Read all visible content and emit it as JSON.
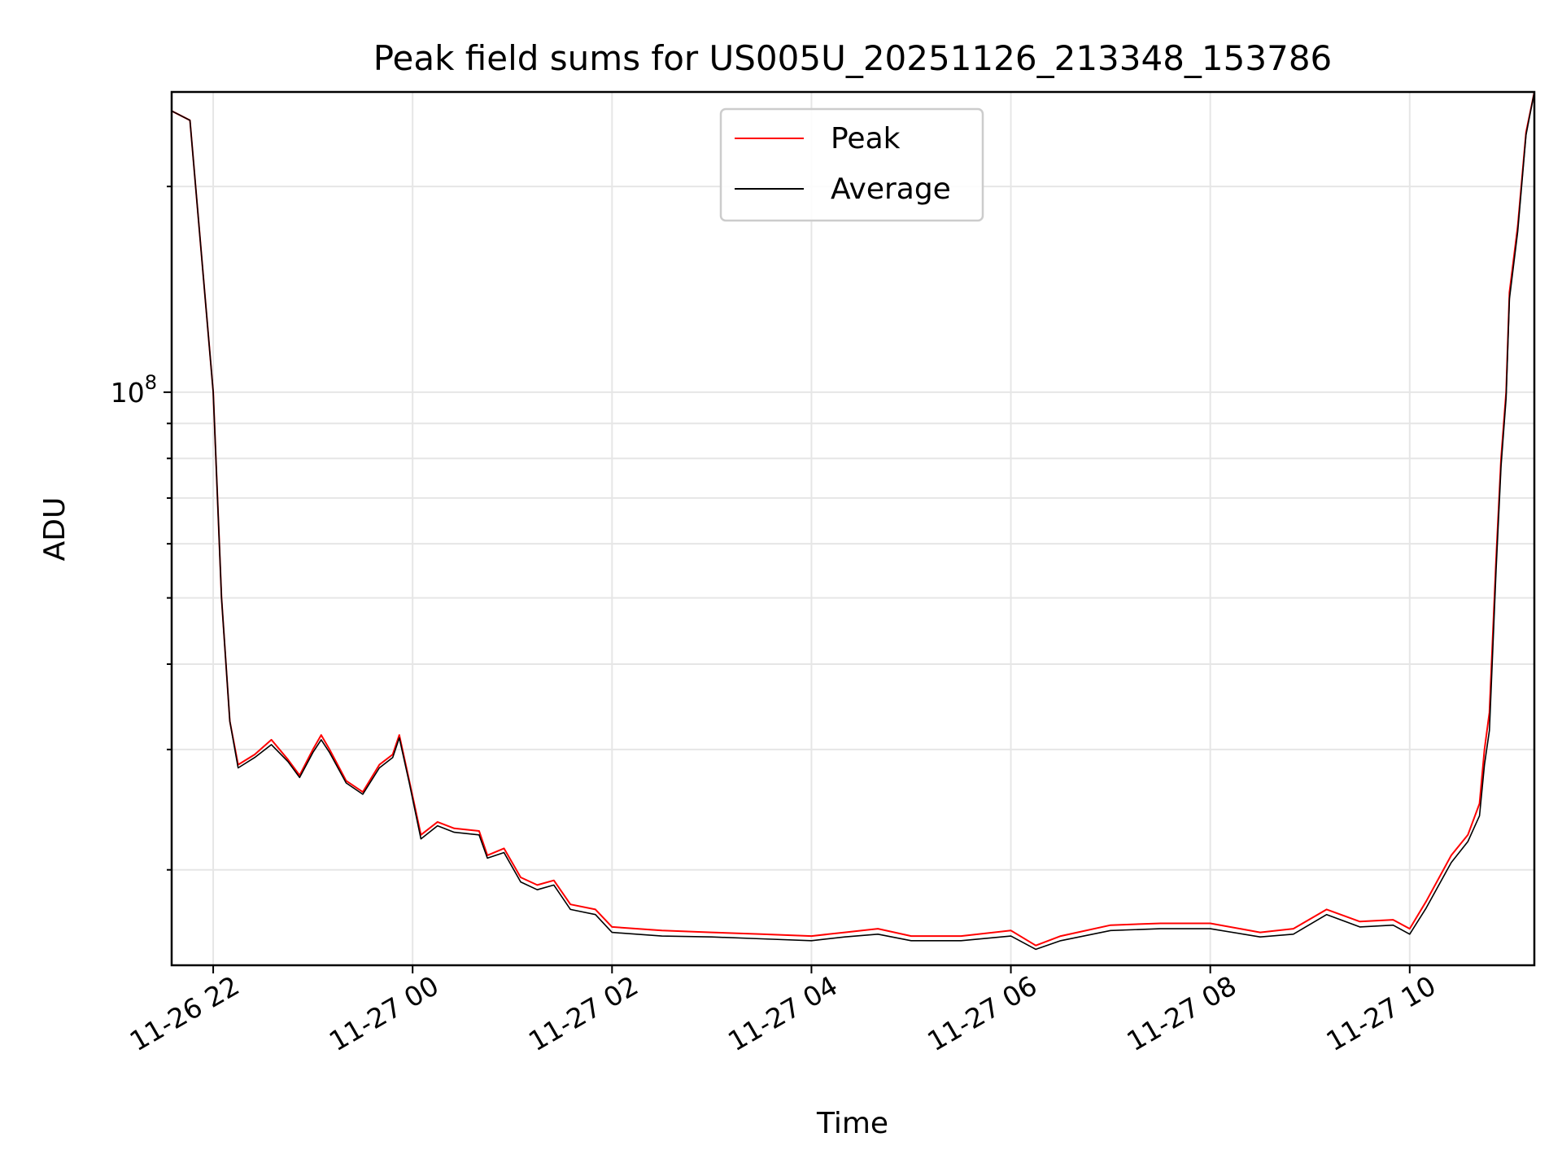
{
  "chart_data": {
    "type": "line",
    "title": "Peak field sums for US005U_20251126_213348_153786",
    "xlabel": "Time",
    "ylabel": "ADU",
    "y_scale": "log",
    "xlim": [
      "2025-11-26 21:35",
      "2025-11-27 11:15"
    ],
    "ylim": [
      14500000,
      275000000
    ],
    "grid": true,
    "legend_position": "top-center",
    "x_ticks": [
      "11-26 22",
      "11-27 00",
      "11-27 02",
      "11-27 04",
      "11-27 06",
      "11-27 08",
      "11-27 10"
    ],
    "x_tick_times": [
      "2025-11-26 22:00",
      "2025-11-27 00:00",
      "2025-11-27 02:00",
      "2025-11-27 04:00",
      "2025-11-27 06:00",
      "2025-11-27 08:00",
      "2025-11-27 10:00"
    ],
    "y_tick_label": {
      "base": "10",
      "exp": "8"
    },
    "series": [
      {
        "name": "Peak",
        "color": "#ff0000",
        "points": [
          [
            "2025-11-26 21:35",
            258000000
          ],
          [
            "2025-11-26 21:46",
            250000000
          ],
          [
            "2025-11-26 22:00",
            100000000
          ],
          [
            "2025-11-26 22:05",
            50000000
          ],
          [
            "2025-11-26 22:10",
            33000000
          ],
          [
            "2025-11-26 22:15",
            28500000
          ],
          [
            "2025-11-26 22:25",
            29500000
          ],
          [
            "2025-11-26 22:35",
            31000000
          ],
          [
            "2025-11-26 22:45",
            29000000
          ],
          [
            "2025-11-26 22:52",
            27500000
          ],
          [
            "2025-11-26 23:00",
            30000000
          ],
          [
            "2025-11-26 23:05",
            31500000
          ],
          [
            "2025-11-26 23:10",
            30000000
          ],
          [
            "2025-11-26 23:20",
            27000000
          ],
          [
            "2025-11-26 23:30",
            26000000
          ],
          [
            "2025-11-26 23:40",
            28500000
          ],
          [
            "2025-11-26 23:48",
            29500000
          ],
          [
            "2025-11-26 23:52",
            31500000
          ],
          [
            "2025-11-26 23:58",
            27000000
          ],
          [
            "2025-11-27 00:05",
            22500000
          ],
          [
            "2025-11-27 00:15",
            23500000
          ],
          [
            "2025-11-27 00:25",
            23000000
          ],
          [
            "2025-11-27 00:40",
            22800000
          ],
          [
            "2025-11-27 00:45",
            21000000
          ],
          [
            "2025-11-27 00:55",
            21500000
          ],
          [
            "2025-11-27 01:05",
            19500000
          ],
          [
            "2025-11-27 01:15",
            19000000
          ],
          [
            "2025-11-27 01:25",
            19300000
          ],
          [
            "2025-11-27 01:35",
            17800000
          ],
          [
            "2025-11-27 01:50",
            17500000
          ],
          [
            "2025-11-27 02:00",
            16500000
          ],
          [
            "2025-11-27 02:30",
            16300000
          ],
          [
            "2025-11-27 03:00",
            16200000
          ],
          [
            "2025-11-27 03:30",
            16100000
          ],
          [
            "2025-11-27 04:00",
            16000000
          ],
          [
            "2025-11-27 04:20",
            16200000
          ],
          [
            "2025-11-27 04:40",
            16400000
          ],
          [
            "2025-11-27 05:00",
            16000000
          ],
          [
            "2025-11-27 05:30",
            16000000
          ],
          [
            "2025-11-27 06:00",
            16300000
          ],
          [
            "2025-11-27 06:15",
            15500000
          ],
          [
            "2025-11-27 06:30",
            16000000
          ],
          [
            "2025-11-27 07:00",
            16600000
          ],
          [
            "2025-11-27 07:30",
            16700000
          ],
          [
            "2025-11-27 08:00",
            16700000
          ],
          [
            "2025-11-27 08:30",
            16200000
          ],
          [
            "2025-11-27 08:50",
            16400000
          ],
          [
            "2025-11-27 09:10",
            17500000
          ],
          [
            "2025-11-27 09:30",
            16800000
          ],
          [
            "2025-11-27 09:50",
            16900000
          ],
          [
            "2025-11-27 10:00",
            16400000
          ],
          [
            "2025-11-27 10:10",
            18000000
          ],
          [
            "2025-11-27 10:25",
            21000000
          ],
          [
            "2025-11-27 10:35",
            22500000
          ],
          [
            "2025-11-27 10:42",
            25000000
          ],
          [
            "2025-11-27 10:45",
            30000000
          ],
          [
            "2025-11-27 10:48",
            34000000
          ],
          [
            "2025-11-27 10:52",
            57000000
          ],
          [
            "2025-11-27 10:55",
            80000000
          ],
          [
            "2025-11-27 10:58",
            100000000
          ],
          [
            "2025-11-27 11:00",
            140000000
          ],
          [
            "2025-11-27 11:05",
            175000000
          ],
          [
            "2025-11-27 11:10",
            240000000
          ],
          [
            "2025-11-27 11:15",
            275000000
          ]
        ]
      },
      {
        "name": "Average",
        "color": "#000000",
        "points": [
          [
            "2025-11-26 21:35",
            258000000
          ],
          [
            "2025-11-26 21:46",
            250000000
          ],
          [
            "2025-11-26 22:00",
            100000000
          ],
          [
            "2025-11-26 22:05",
            50000000
          ],
          [
            "2025-11-26 22:10",
            33000000
          ],
          [
            "2025-11-26 22:15",
            28200000
          ],
          [
            "2025-11-26 22:25",
            29200000
          ],
          [
            "2025-11-26 22:35",
            30500000
          ],
          [
            "2025-11-26 22:45",
            28800000
          ],
          [
            "2025-11-26 22:52",
            27300000
          ],
          [
            "2025-11-26 23:00",
            29700000
          ],
          [
            "2025-11-26 23:05",
            31000000
          ],
          [
            "2025-11-26 23:10",
            29700000
          ],
          [
            "2025-11-26 23:20",
            26800000
          ],
          [
            "2025-11-26 23:30",
            25800000
          ],
          [
            "2025-11-26 23:40",
            28200000
          ],
          [
            "2025-11-26 23:48",
            29200000
          ],
          [
            "2025-11-26 23:52",
            31200000
          ],
          [
            "2025-11-26 23:58",
            26800000
          ],
          [
            "2025-11-27 00:05",
            22200000
          ],
          [
            "2025-11-27 00:15",
            23200000
          ],
          [
            "2025-11-27 00:25",
            22700000
          ],
          [
            "2025-11-27 00:40",
            22500000
          ],
          [
            "2025-11-27 00:45",
            20800000
          ],
          [
            "2025-11-27 00:55",
            21200000
          ],
          [
            "2025-11-27 01:05",
            19200000
          ],
          [
            "2025-11-27 01:15",
            18700000
          ],
          [
            "2025-11-27 01:25",
            19000000
          ],
          [
            "2025-11-27 01:35",
            17500000
          ],
          [
            "2025-11-27 01:50",
            17200000
          ],
          [
            "2025-11-27 02:00",
            16200000
          ],
          [
            "2025-11-27 02:30",
            16000000
          ],
          [
            "2025-11-27 03:00",
            15950000
          ],
          [
            "2025-11-27 03:30",
            15850000
          ],
          [
            "2025-11-27 04:00",
            15750000
          ],
          [
            "2025-11-27 04:20",
            15950000
          ],
          [
            "2025-11-27 04:40",
            16100000
          ],
          [
            "2025-11-27 05:00",
            15750000
          ],
          [
            "2025-11-27 05:30",
            15750000
          ],
          [
            "2025-11-27 06:00",
            16000000
          ],
          [
            "2025-11-27 06:15",
            15300000
          ],
          [
            "2025-11-27 06:30",
            15750000
          ],
          [
            "2025-11-27 07:00",
            16300000
          ],
          [
            "2025-11-27 07:30",
            16400000
          ],
          [
            "2025-11-27 08:00",
            16400000
          ],
          [
            "2025-11-27 08:30",
            15950000
          ],
          [
            "2025-11-27 08:50",
            16100000
          ],
          [
            "2025-11-27 09:10",
            17200000
          ],
          [
            "2025-11-27 09:30",
            16500000
          ],
          [
            "2025-11-27 09:50",
            16600000
          ],
          [
            "2025-11-27 10:00",
            16100000
          ],
          [
            "2025-11-27 10:10",
            17600000
          ],
          [
            "2025-11-27 10:25",
            20500000
          ],
          [
            "2025-11-27 10:35",
            22000000
          ],
          [
            "2025-11-27 10:42",
            24000000
          ],
          [
            "2025-11-27 10:45",
            28500000
          ],
          [
            "2025-11-27 10:48",
            32000000
          ],
          [
            "2025-11-27 10:52",
            55000000
          ],
          [
            "2025-11-27 10:55",
            78000000
          ],
          [
            "2025-11-27 10:58",
            98000000
          ],
          [
            "2025-11-27 11:00",
            137000000
          ],
          [
            "2025-11-27 11:05",
            172000000
          ],
          [
            "2025-11-27 11:10",
            238000000
          ],
          [
            "2025-11-27 11:15",
            275000000
          ]
        ]
      }
    ]
  }
}
